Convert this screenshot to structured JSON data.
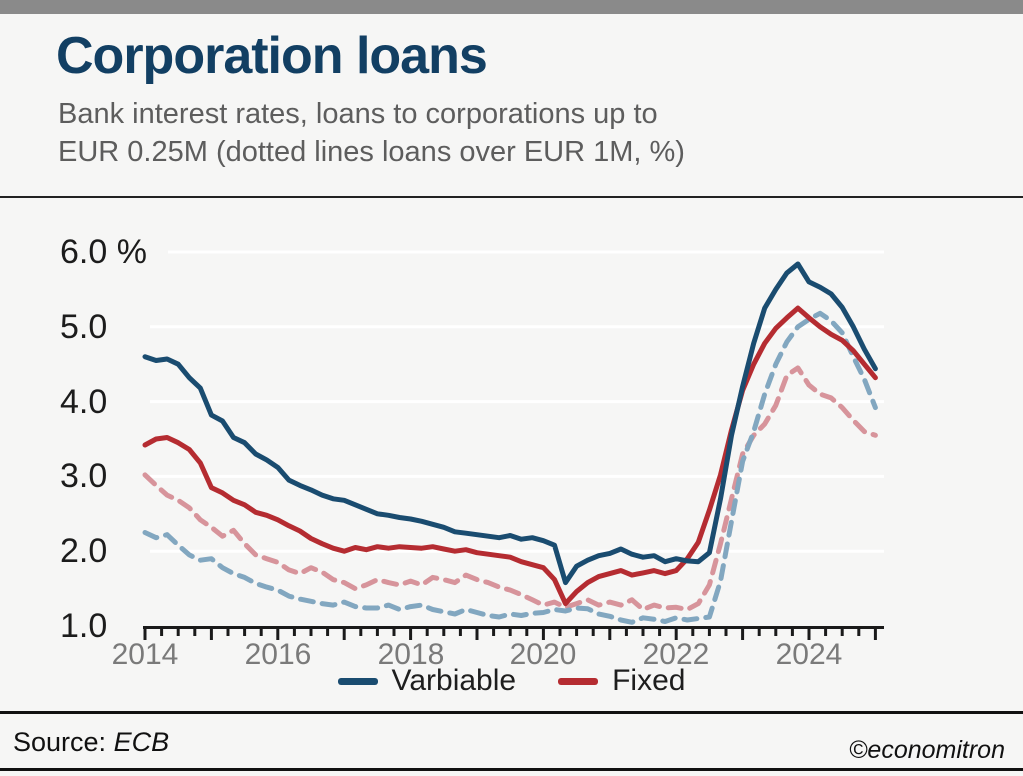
{
  "page": {
    "background": "#f6f6f5",
    "top_bar_color": "#8a8a8a"
  },
  "header": {
    "title": "Corporation loans",
    "subtitle_line1": "Bank interest rates, loans to corporations up to",
    "subtitle_line2": "EUR 0.25M (dotted lines loans over EUR 1M, %)",
    "title_color": "#123f63",
    "subtitle_color": "#5d5d5d"
  },
  "footer": {
    "source_label": "Source:",
    "source_value": "ECB",
    "watermark": "©economitron"
  },
  "chart_data": {
    "type": "line",
    "title": "Corporation loans",
    "subtitle": "Bank interest rates, loans to corporations up to EUR 0.25M (dotted lines loans over EUR 1M, %)",
    "ylabel": "%",
    "ylim": [
      1.0,
      6.2
    ],
    "xlim": [
      2014.0,
      2025.15
    ],
    "grid": "horizontal",
    "grid_color": "#ffffff",
    "axis_color": "#1a1a1a",
    "legend_position": "bottom-center",
    "y_ticks": [
      1.0,
      2.0,
      3.0,
      4.0,
      5.0,
      6.0
    ],
    "y_tick_labels": [
      "1.0",
      "2.0",
      "3.0",
      "4.0",
      "5.0",
      "6.0 %"
    ],
    "x_ticks": [
      2014,
      2016,
      2018,
      2020,
      2022,
      2024
    ],
    "x_tick_labels": [
      "2014",
      "2016",
      "2018",
      "2020",
      "2022",
      "2024"
    ],
    "minor_x_tick_interval_years": 0.25,
    "x_start": 2014.0,
    "x_step_years": 0.166667,
    "legend": [
      "Varbiable",
      "Fixed"
    ],
    "series": [
      {
        "name": "Fixed (loans over EUR 1M)",
        "style": "dashed",
        "in_legend": false,
        "color": "#d7949b",
        "values": [
          3.02,
          2.88,
          2.75,
          2.68,
          2.58,
          2.42,
          2.32,
          2.2,
          2.28,
          2.1,
          1.95,
          1.9,
          1.85,
          1.75,
          1.7,
          1.78,
          1.72,
          1.62,
          1.58,
          1.5,
          1.55,
          1.62,
          1.58,
          1.55,
          1.6,
          1.55,
          1.65,
          1.62,
          1.58,
          1.68,
          1.62,
          1.58,
          1.52,
          1.48,
          1.42,
          1.35,
          1.28,
          1.32,
          1.25,
          1.3,
          1.35,
          1.28,
          1.32,
          1.28,
          1.35,
          1.22,
          1.28,
          1.24,
          1.25,
          1.22,
          1.3,
          1.55,
          2.1,
          2.7,
          3.3,
          3.55,
          3.7,
          3.95,
          4.35,
          4.45,
          4.22,
          4.1,
          4.05,
          3.92,
          3.75,
          3.6,
          3.55
        ]
      },
      {
        "name": "Varbiable (loans over EUR 1M)",
        "style": "dashed",
        "in_legend": false,
        "color": "#82a7c0",
        "values": [
          2.25,
          2.18,
          2.22,
          2.08,
          1.95,
          1.88,
          1.9,
          1.78,
          1.7,
          1.65,
          1.57,
          1.52,
          1.48,
          1.4,
          1.36,
          1.33,
          1.3,
          1.28,
          1.32,
          1.26,
          1.24,
          1.24,
          1.28,
          1.22,
          1.26,
          1.28,
          1.22,
          1.19,
          1.16,
          1.22,
          1.18,
          1.14,
          1.12,
          1.16,
          1.14,
          1.17,
          1.18,
          1.22,
          1.2,
          1.24,
          1.23,
          1.16,
          1.13,
          1.08,
          1.05,
          1.11,
          1.09,
          1.06,
          1.11,
          1.08,
          1.1,
          1.12,
          1.6,
          2.4,
          3.2,
          3.6,
          4.1,
          4.5,
          4.8,
          5.0,
          5.1,
          5.18,
          5.08,
          4.92,
          4.6,
          4.3,
          3.92
        ]
      },
      {
        "name": "Fixed",
        "style": "solid",
        "in_legend": true,
        "color": "#b52c31",
        "values": [
          3.42,
          3.5,
          3.52,
          3.45,
          3.36,
          3.18,
          2.85,
          2.78,
          2.68,
          2.62,
          2.52,
          2.48,
          2.42,
          2.34,
          2.27,
          2.17,
          2.1,
          2.04,
          2.0,
          2.05,
          2.02,
          2.06,
          2.04,
          2.06,
          2.05,
          2.04,
          2.06,
          2.03,
          2.0,
          2.02,
          1.98,
          1.96,
          1.94,
          1.92,
          1.86,
          1.82,
          1.78,
          1.62,
          1.3,
          1.46,
          1.58,
          1.66,
          1.7,
          1.74,
          1.68,
          1.71,
          1.74,
          1.7,
          1.74,
          1.9,
          2.12,
          2.55,
          3.02,
          3.62,
          4.15,
          4.5,
          4.78,
          4.98,
          5.12,
          5.25,
          5.12,
          5.0,
          4.9,
          4.82,
          4.68,
          4.5,
          4.32
        ]
      },
      {
        "name": "Varbiable",
        "style": "solid",
        "in_legend": true,
        "color": "#1a4c70",
        "values": [
          4.6,
          4.55,
          4.57,
          4.5,
          4.32,
          4.18,
          3.82,
          3.74,
          3.52,
          3.45,
          3.3,
          3.22,
          3.12,
          2.95,
          2.88,
          2.82,
          2.75,
          2.7,
          2.68,
          2.62,
          2.56,
          2.5,
          2.48,
          2.45,
          2.43,
          2.4,
          2.36,
          2.32,
          2.26,
          2.24,
          2.22,
          2.2,
          2.18,
          2.21,
          2.16,
          2.18,
          2.14,
          2.08,
          1.58,
          1.8,
          1.88,
          1.94,
          1.97,
          2.03,
          1.96,
          1.92,
          1.94,
          1.86,
          1.9,
          1.87,
          1.86,
          1.98,
          2.7,
          3.55,
          4.2,
          4.78,
          5.25,
          5.5,
          5.72,
          5.84,
          5.6,
          5.53,
          5.44,
          5.26,
          5.0,
          4.7,
          4.44
        ]
      }
    ]
  }
}
